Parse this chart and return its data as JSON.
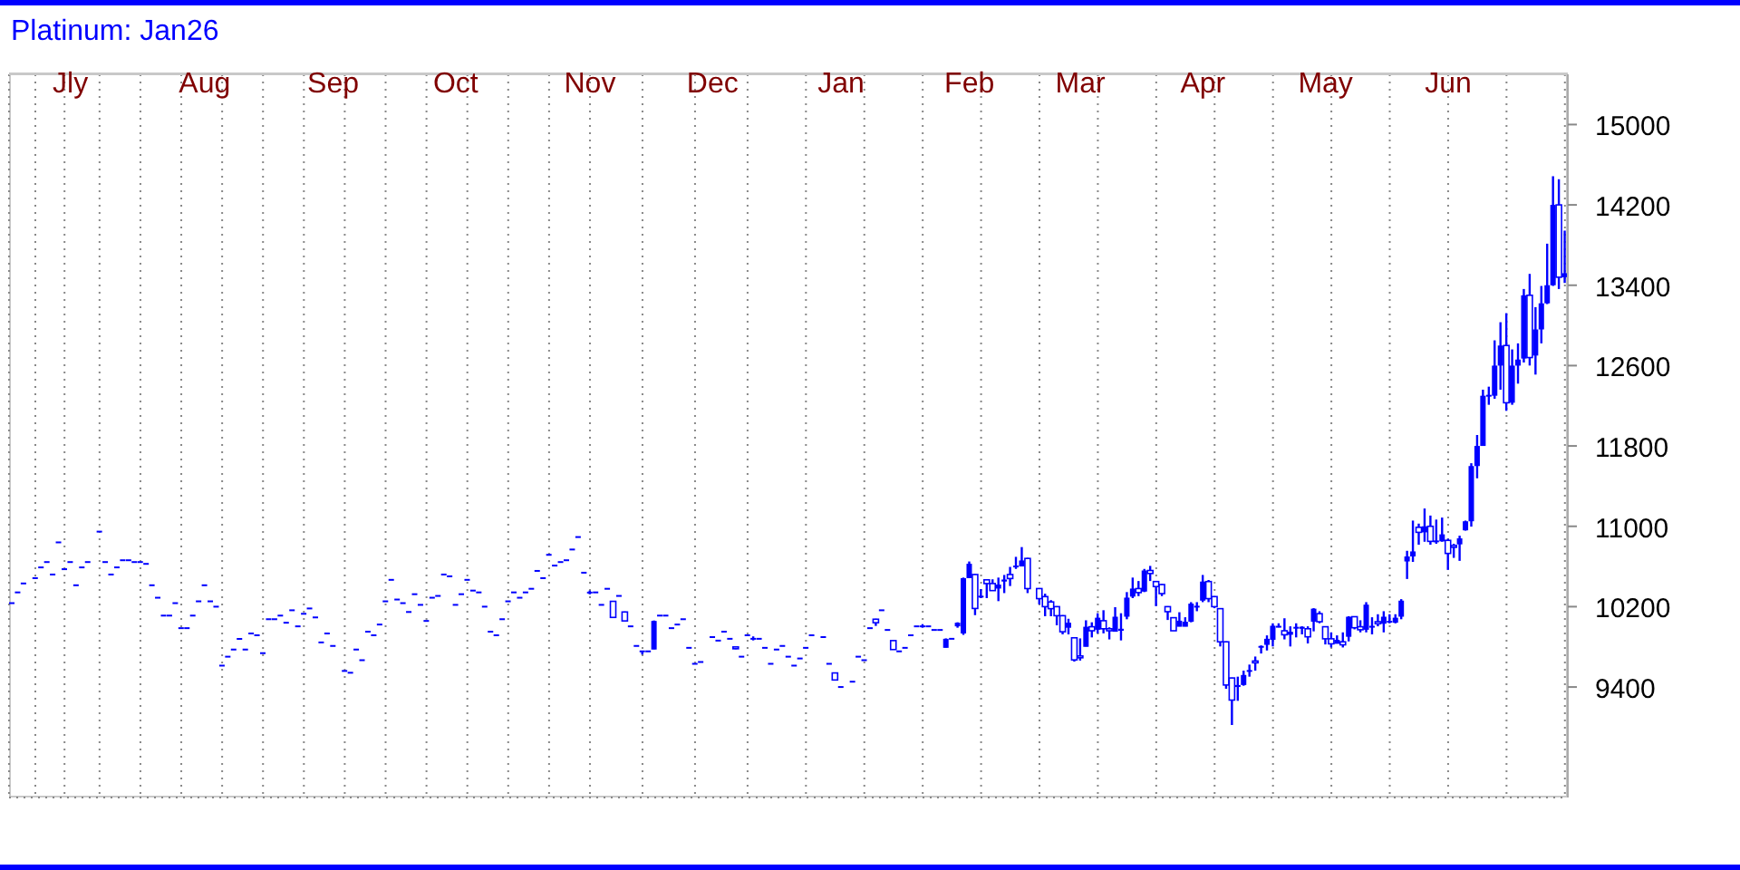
{
  "chart_data": {
    "type": "candlestick",
    "title": "Platinum: Jan26",
    "color": "#0000ff",
    "grid": true,
    "ylim": [
      8300,
      15500
    ],
    "yticks": [
      9400,
      10200,
      11000,
      11800,
      12600,
      13400,
      14200,
      15000
    ],
    "categories": [
      null,
      null,
      null,
      null,
      null,
      null,
      null,
      null,
      null,
      null,
      "Jly",
      null,
      null,
      null,
      null,
      null,
      null,
      null,
      null,
      null,
      null,
      null,
      null,
      null,
      null,
      null,
      null,
      null,
      null,
      null,
      null,
      null,
      null,
      "Aug",
      null,
      null,
      null,
      null,
      null,
      null,
      null,
      null,
      null,
      null,
      null,
      null,
      null,
      null,
      null,
      null,
      null,
      null,
      null,
      null,
      null,
      "Sep",
      null,
      null,
      null,
      null,
      null,
      null,
      null,
      null,
      null,
      null,
      null,
      null,
      null,
      null,
      null,
      null,
      null,
      null,
      null,
      null,
      "Oct",
      null,
      null,
      null,
      null,
      null,
      null,
      null,
      null,
      null,
      null,
      null,
      null,
      null,
      null,
      null,
      null,
      null,
      null,
      null,
      null,
      null,
      null,
      "Nov",
      null,
      null,
      null,
      null,
      null,
      null,
      null,
      null,
      null,
      null,
      null,
      null,
      null,
      null,
      null,
      null,
      null,
      null,
      null,
      null,
      "Dec",
      null,
      null,
      null,
      null,
      null,
      null,
      null,
      null,
      null,
      null,
      null,
      null,
      null,
      null,
      null,
      null,
      null,
      null,
      null,
      null,
      null,
      "Jan",
      null,
      null,
      null,
      null,
      null,
      null,
      null,
      null,
      null,
      null,
      null,
      null,
      null,
      null,
      null,
      null,
      null,
      null,
      null,
      null,
      null,
      "Feb",
      null,
      null,
      null,
      null,
      null,
      null,
      null,
      null,
      null,
      null,
      null,
      null,
      null,
      null,
      null,
      null,
      null,
      null,
      "Mar",
      null,
      null,
      null,
      null,
      null,
      null,
      null,
      null,
      null,
      null,
      null,
      null,
      null,
      null,
      null,
      null,
      null,
      null,
      null,
      null,
      "Apr",
      null,
      null,
      null,
      null,
      null,
      null,
      null,
      null,
      null,
      null,
      null,
      null,
      null,
      null,
      null,
      null,
      null,
      null,
      null,
      null,
      "May",
      null,
      null,
      null,
      null,
      null,
      null,
      null,
      null,
      null,
      null,
      null,
      null,
      null,
      null,
      null,
      null,
      null,
      null,
      null,
      null,
      "Jun",
      null,
      null,
      null,
      null,
      null,
      null,
      null,
      null,
      null,
      null,
      null,
      null,
      null,
      null,
      null,
      null,
      null,
      null,
      null,
      null
    ],
    "ohlc": [
      [
        10235,
        10235,
        10235,
        10235
      ],
      [
        10342,
        10342,
        10342,
        10342
      ],
      [
        10431,
        10431,
        10431,
        10431
      ],
      null,
      [
        10484,
        10484,
        10484,
        10484
      ],
      [
        10591,
        10591,
        10591,
        10591
      ],
      [
        10644,
        10644,
        10644,
        10644
      ],
      [
        10520,
        10520,
        10520,
        10520
      ],
      [
        10840,
        10840,
        10840,
        10840
      ],
      [
        10573,
        10573,
        10573,
        10573
      ],
      [
        10644,
        10644,
        10644,
        10644
      ],
      [
        10413,
        10413,
        10413,
        10413
      ],
      [
        10591,
        10591,
        10591,
        10591
      ],
      [
        10644,
        10644,
        10644,
        10644
      ],
      null,
      [
        10947,
        10947,
        10947,
        10947
      ],
      [
        10644,
        10644,
        10644,
        10644
      ],
      [
        10520,
        10520,
        10520,
        10520
      ],
      [
        10591,
        10591,
        10591,
        10591
      ],
      [
        10662,
        10662,
        10662,
        10662
      ],
      [
        10662,
        10662,
        10662,
        10662
      ],
      [
        10644,
        10644,
        10644,
        10644
      ],
      [
        10644,
        10644,
        10644,
        10644
      ],
      [
        10626,
        10626,
        10626,
        10626
      ],
      [
        10413,
        10413,
        10413,
        10413
      ],
      [
        10289,
        10289,
        10289,
        10289
      ],
      [
        10111,
        10111,
        10111,
        10111
      ],
      [
        10111,
        10111,
        10111,
        10111
      ],
      [
        10235,
        10235,
        10235,
        10235
      ],
      [
        9986,
        9986,
        9986,
        9986
      ],
      [
        9986,
        9986,
        9986,
        9986
      ],
      [
        10111,
        10111,
        10111,
        10111
      ],
      [
        10253,
        10253,
        10253,
        10253
      ],
      [
        10413,
        10413,
        10413,
        10413
      ],
      [
        10253,
        10253,
        10253,
        10253
      ],
      [
        10200,
        10200,
        10200,
        10200
      ],
      [
        9613,
        9613,
        9613,
        9613
      ],
      [
        9702,
        9702,
        9702,
        9702
      ],
      [
        9773,
        9773,
        9773,
        9773
      ],
      [
        9879,
        9879,
        9879,
        9879
      ],
      [
        9773,
        9773,
        9773,
        9773
      ],
      [
        9933,
        9933,
        9933,
        9933
      ],
      [
        9915,
        9915,
        9915,
        9915
      ],
      [
        9737,
        9737,
        9737,
        9737
      ],
      [
        10075,
        10075,
        10075,
        10075
      ],
      [
        10075,
        10075,
        10075,
        10075
      ],
      [
        10111,
        10111,
        10111,
        10111
      ],
      [
        10040,
        10040,
        10040,
        10040
      ],
      [
        10164,
        10164,
        10164,
        10164
      ],
      [
        10004,
        10004,
        10004,
        10004
      ],
      [
        10129,
        10129,
        10129,
        10129
      ],
      [
        10182,
        10182,
        10182,
        10182
      ],
      [
        10093,
        10093,
        10093,
        10093
      ],
      [
        9844,
        9844,
        9844,
        9844
      ],
      [
        9933,
        9933,
        9933,
        9933
      ],
      [
        9809,
        9809,
        9809,
        9809
      ],
      null,
      [
        9560,
        9560,
        9560,
        9560
      ],
      [
        9542,
        9542,
        9542,
        9542
      ],
      [
        9773,
        9773,
        9773,
        9773
      ],
      [
        9667,
        9667,
        9667,
        9667
      ],
      [
        9951,
        9951,
        9951,
        9951
      ],
      [
        9915,
        9915,
        9915,
        9915
      ],
      [
        10022,
        10022,
        10022,
        10022
      ],
      [
        10253,
        10253,
        10253,
        10253
      ],
      [
        10467,
        10467,
        10467,
        10467
      ],
      [
        10271,
        10271,
        10271,
        10271
      ],
      [
        10235,
        10235,
        10235,
        10235
      ],
      [
        10147,
        10147,
        10147,
        10147
      ],
      [
        10324,
        10324,
        10324,
        10324
      ],
      [
        10218,
        10218,
        10218,
        10218
      ],
      [
        10058,
        10058,
        10058,
        10058
      ],
      [
        10289,
        10289,
        10289,
        10289
      ],
      [
        10307,
        10307,
        10307,
        10307
      ],
      [
        10520,
        10520,
        10520,
        10520
      ],
      [
        10502,
        10502,
        10502,
        10502
      ],
      [
        10218,
        10218,
        10218,
        10218
      ],
      [
        10324,
        10324,
        10324,
        10324
      ],
      [
        10467,
        10467,
        10467,
        10467
      ],
      [
        10360,
        10360,
        10360,
        10360
      ],
      [
        10342,
        10342,
        10342,
        10342
      ],
      [
        10200,
        10200,
        10200,
        10200
      ],
      [
        9951,
        9951,
        9951,
        9951
      ],
      [
        9915,
        9915,
        9915,
        9915
      ],
      [
        10075,
        10075,
        10075,
        10075
      ],
      [
        10253,
        10253,
        10253,
        10253
      ],
      [
        10342,
        10342,
        10342,
        10342
      ],
      [
        10289,
        10289,
        10289,
        10289
      ],
      [
        10342,
        10342,
        10342,
        10342
      ],
      [
        10378,
        10378,
        10378,
        10378
      ],
      [
        10556,
        10556,
        10556,
        10556
      ],
      [
        10484,
        10484,
        10484,
        10484
      ],
      [
        10716,
        10716,
        10716,
        10716
      ],
      [
        10609,
        10609,
        10609,
        10609
      ],
      [
        10644,
        10644,
        10644,
        10644
      ],
      [
        10662,
        10662,
        10662,
        10662
      ],
      [
        10769,
        10769,
        10769,
        10769
      ],
      [
        10893,
        10893,
        10893,
        10893
      ],
      [
        10538,
        10538,
        10538,
        10538
      ],
      [
        10324,
        10355,
        10318,
        10340
      ],
      [
        10342,
        10342,
        10342,
        10342
      ],
      [
        10218,
        10218,
        10218,
        10218
      ],
      [
        10378,
        10378,
        10378,
        10378
      ],
      [
        10253,
        10253,
        10093,
        10093
      ],
      [
        10307,
        10307,
        10307,
        10307
      ],
      [
        10147,
        10147,
        10058,
        10058
      ],
      [
        10004,
        10004,
        10004,
        10004
      ],
      [
        9809,
        9809,
        9809,
        9809
      ],
      [
        9755,
        9755,
        9720,
        9755
      ],
      [
        9755,
        9755,
        9755,
        9755
      ],
      [
        9773,
        10058,
        9773,
        10058
      ],
      [
        10111,
        10111,
        10111,
        10111
      ],
      [
        10111,
        10111,
        10111,
        10111
      ],
      [
        9986,
        9986,
        9986,
        9986
      ],
      [
        10022,
        10022,
        10022,
        10022
      ],
      [
        10075,
        10075,
        10075,
        10075
      ],
      [
        9790,
        9790,
        9790,
        9790
      ],
      [
        9631,
        9631,
        9631,
        9631
      ],
      [
        9649,
        9649,
        9649,
        9649
      ],
      null,
      [
        9897,
        9897,
        9897,
        9897
      ],
      [
        9862,
        9862,
        9862,
        9862
      ],
      [
        9951,
        9951,
        9951,
        9951
      ],
      [
        9880,
        9880,
        9880,
        9880
      ],
      [
        9790,
        9790,
        9773,
        9780
      ],
      [
        9702,
        9702,
        9702,
        9702
      ],
      [
        9915,
        9915,
        9915,
        9915
      ],
      [
        9880,
        9900,
        9860,
        9880
      ],
      [
        9880,
        9880,
        9880,
        9880
      ],
      [
        9790,
        9790,
        9790,
        9790
      ],
      [
        9631,
        9631,
        9631,
        9631
      ],
      [
        9773,
        9773,
        9773,
        9773
      ],
      [
        9809,
        9809,
        9809,
        9809
      ],
      [
        9702,
        9702,
        9702,
        9702
      ],
      [
        9613,
        9613,
        9613,
        9613
      ],
      [
        9684,
        9684,
        9684,
        9684
      ],
      [
        9790,
        9790,
        9790,
        9790
      ],
      [
        9915,
        9915,
        9915,
        9915
      ],
      null,
      [
        9897,
        9897,
        9897,
        9897
      ],
      [
        9631,
        9631,
        9631,
        9631
      ],
      [
        9540,
        9540,
        9465,
        9470
      ],
      [
        9400,
        9400,
        9400,
        9400
      ],
      null,
      [
        9453,
        9453,
        9453,
        9453
      ],
      [
        9702,
        9702,
        9702,
        9702
      ],
      [
        9667,
        9667,
        9667,
        9667
      ],
      [
        9986,
        9986,
        9986,
        9986
      ],
      [
        10075,
        10075,
        10004,
        10040
      ],
      [
        10164,
        10164,
        10164,
        10164
      ],
      [
        9968,
        9968,
        9968,
        9968
      ],
      [
        9862,
        9862,
        9773,
        9773
      ],
      [
        9755,
        9755,
        9755,
        9755
      ],
      [
        9790,
        9790,
        9790,
        9790
      ],
      [
        9915,
        9915,
        9915,
        9915
      ],
      [
        10004,
        10004,
        10004,
        10004
      ],
      [
        10004,
        10022,
        9986,
        10004
      ],
      [
        10004,
        10004,
        10004,
        10004
      ],
      [
        9968,
        9968,
        9968,
        9968
      ],
      [
        9968,
        9968,
        9968,
        9968
      ],
      [
        9790,
        9880,
        9790,
        9880
      ],
      [
        9880,
        9880,
        9880,
        9880
      ],
      [
        10004,
        10040,
        9986,
        10040
      ],
      [
        9933,
        10484,
        9915,
        10484
      ],
      [
        10484,
        10644,
        10484,
        10627
      ],
      [
        10520,
        10520,
        10111,
        10182
      ],
      [
        10290,
        10370,
        10280,
        10300
      ],
      [
        10467,
        10467,
        10280,
        10430
      ],
      [
        10430,
        10467,
        10360,
        10360
      ],
      [
        10380,
        10484,
        10250,
        10420
      ],
      [
        10450,
        10510,
        10330,
        10470
      ],
      [
        10520,
        10590,
        10400,
        10480
      ],
      [
        10590,
        10690,
        10570,
        10600
      ],
      [
        10600,
        10787,
        10600,
        10660
      ],
      [
        10680,
        10680,
        10330,
        10380
      ],
      null,
      [
        10380,
        10380,
        10218,
        10280
      ],
      [
        10300,
        10324,
        10100,
        10200
      ],
      [
        10247,
        10260,
        10100,
        10180
      ],
      [
        10200,
        10200,
        10010,
        10110
      ],
      [
        10110,
        10111,
        9920,
        9950
      ],
      [
        9990,
        10075,
        9920,
        10040
      ],
      [
        9890,
        9890,
        9650,
        9670
      ],
      [
        9700,
        9880,
        9660,
        9690
      ],
      [
        9800,
        10060,
        9800,
        10000
      ],
      [
        10000,
        10040,
        9890,
        9960
      ],
      [
        9970,
        10130,
        9930,
        10090
      ],
      [
        10060,
        10160,
        9930,
        9980
      ],
      [
        9980,
        9990,
        9870,
        9960
      ],
      [
        9950,
        10190,
        9950,
        10100
      ],
      [
        9960,
        10130,
        9860,
        9980
      ],
      [
        10100,
        10340,
        10070,
        10290
      ],
      [
        10300,
        10484,
        10280,
        10380
      ],
      [
        10380,
        10450,
        10300,
        10340
      ],
      [
        10350,
        10570,
        10340,
        10560
      ],
      [
        10560,
        10600,
        10450,
        10530
      ],
      [
        10450,
        10450,
        10200,
        10400
      ],
      [
        10420,
        10420,
        10300,
        10330
      ],
      [
        10200,
        10200,
        10063,
        10150
      ],
      [
        10090,
        10090,
        9960,
        9960
      ],
      [
        10000,
        10140,
        10000,
        10060
      ],
      [
        10000,
        10090,
        10000,
        10050
      ],
      [
        10050,
        10240,
        10040,
        10230
      ],
      [
        10200,
        10240,
        10150,
        10200
      ],
      [
        10260,
        10510,
        10240,
        10450
      ],
      [
        10450,
        10460,
        10240,
        10280
      ],
      [
        10300,
        10300,
        10180,
        10200
      ],
      [
        10180,
        10180,
        9800,
        9850
      ],
      [
        9850,
        9850,
        9380,
        9420
      ],
      [
        9490,
        9490,
        9020,
        9270
      ],
      [
        9400,
        9500,
        9260,
        9420
      ],
      [
        9420,
        9560,
        9410,
        9520
      ],
      [
        9560,
        9620,
        9500,
        9560
      ],
      [
        9650,
        9700,
        9560,
        9640
      ],
      [
        9790,
        9810,
        9730,
        9800
      ],
      [
        9820,
        9910,
        9760,
        9880
      ],
      [
        9870,
        10030,
        9800,
        10010
      ],
      [
        10000,
        10030,
        9990,
        10000
      ],
      [
        9960,
        10080,
        9870,
        9920
      ],
      [
        9920,
        10000,
        9800,
        9950
      ],
      [
        9980,
        10030,
        9890,
        9990
      ],
      [
        9980,
        10000,
        9920,
        10000
      ],
      [
        9980,
        10000,
        9830,
        9900
      ],
      [
        10050,
        10180,
        9950,
        10180
      ],
      [
        10130,
        10150,
        10030,
        10050
      ],
      [
        10000,
        10000,
        9820,
        9880
      ],
      [
        9880,
        9940,
        9790,
        9830
      ],
      [
        9830,
        9910,
        9830,
        9870
      ],
      [
        9850,
        9940,
        9790,
        9820
      ],
      [
        9900,
        10100,
        9850,
        10100
      ],
      [
        10100,
        10100,
        9970,
        9990
      ],
      [
        10000,
        10060,
        9940,
        9970
      ],
      [
        9970,
        10240,
        9940,
        10220
      ],
      [
        10000,
        10090,
        9920,
        10000
      ],
      [
        10050,
        10120,
        10000,
        10030
      ],
      [
        10030,
        10150,
        9940,
        10100
      ],
      [
        10050,
        10120,
        10030,
        10050
      ],
      [
        10040,
        10120,
        10030,
        10090
      ],
      [
        10100,
        10270,
        10070,
        10260
      ],
      [
        10650,
        10750,
        10470,
        10700
      ],
      [
        10700,
        11050,
        10640,
        10750
      ],
      [
        10990,
        11020,
        10810,
        10940
      ],
      [
        10940,
        11170,
        10840,
        11000
      ],
      [
        11000,
        11100,
        10810,
        10850
      ],
      [
        10850,
        11060,
        10820,
        10850
      ],
      [
        10850,
        11080,
        10840,
        10920
      ],
      [
        10860,
        10870,
        10560,
        10730
      ],
      [
        10800,
        10820,
        10680,
        10790
      ],
      [
        10820,
        10900,
        10650,
        10880
      ],
      [
        10960,
        11050,
        10950,
        11050
      ],
      [
        11050,
        11620,
        10990,
        11600
      ],
      [
        11600,
        11900,
        11470,
        11800
      ],
      [
        11800,
        12350,
        11800,
        12300
      ],
      [
        12300,
        12380,
        12200,
        12300
      ],
      [
        12300,
        12840,
        12260,
        12600
      ],
      [
        12600,
        13020,
        12350,
        12800
      ],
      [
        12800,
        13110,
        12140,
        12230
      ],
      [
        12230,
        12750,
        12200,
        12600
      ],
      [
        12600,
        12810,
        12410,
        12660
      ],
      [
        12670,
        13350,
        12620,
        13300
      ],
      [
        13300,
        13500,
        12590,
        12680
      ],
      [
        12700,
        13170,
        12500,
        12960
      ],
      [
        12960,
        13380,
        12810,
        13220
      ],
      [
        13220,
        13800,
        13200,
        13400
      ],
      [
        13400,
        14470,
        13380,
        14200
      ],
      [
        14200,
        14440,
        13350,
        13480
      ],
      [
        13480,
        13930,
        13410,
        13520
      ]
    ]
  }
}
